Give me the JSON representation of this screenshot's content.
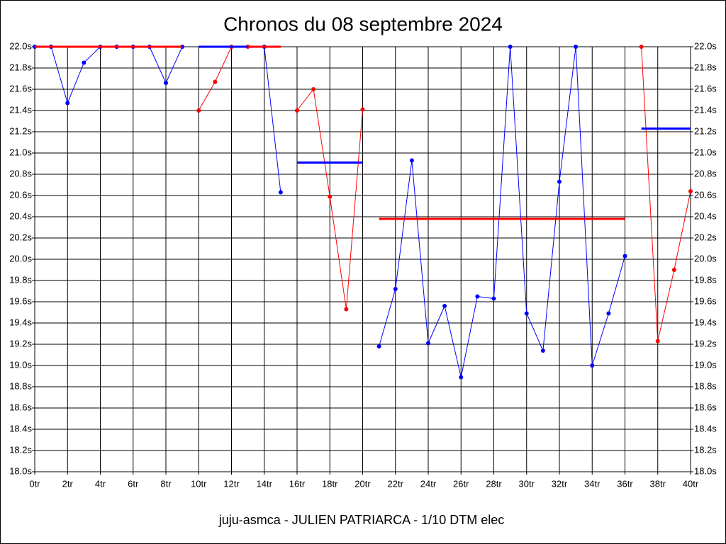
{
  "chart_data": {
    "type": "line",
    "title": "Chronos du 08 septembre 2024",
    "footer": "juju-asmca - JULIEN PATRIARCA - 1/10 DTM elec",
    "xlim": [
      0,
      40
    ],
    "ylim": [
      18.0,
      22.0
    ],
    "grid": true,
    "xticks": [
      {
        "value": 0,
        "label": "0tr"
      },
      {
        "value": 2,
        "label": "2tr"
      },
      {
        "value": 4,
        "label": "4tr"
      },
      {
        "value": 6,
        "label": "6tr"
      },
      {
        "value": 8,
        "label": "8tr"
      },
      {
        "value": 10,
        "label": "10tr"
      },
      {
        "value": 12,
        "label": "12tr"
      },
      {
        "value": 14,
        "label": "14tr"
      },
      {
        "value": 16,
        "label": "16tr"
      },
      {
        "value": 18,
        "label": "18tr"
      },
      {
        "value": 20,
        "label": "20tr"
      },
      {
        "value": 22,
        "label": "22tr"
      },
      {
        "value": 24,
        "label": "24tr"
      },
      {
        "value": 26,
        "label": "26tr"
      },
      {
        "value": 28,
        "label": "28tr"
      },
      {
        "value": 30,
        "label": "30tr"
      },
      {
        "value": 32,
        "label": "32tr"
      },
      {
        "value": 34,
        "label": "34tr"
      },
      {
        "value": 36,
        "label": "36tr"
      },
      {
        "value": 38,
        "label": "38tr"
      },
      {
        "value": 40,
        "label": "40tr"
      }
    ],
    "yticks": [
      {
        "value": 18.0,
        "label": "18.0s"
      },
      {
        "value": 18.2,
        "label": "18.2s"
      },
      {
        "value": 18.4,
        "label": "18.4s"
      },
      {
        "value": 18.6,
        "label": "18.6s"
      },
      {
        "value": 18.8,
        "label": "18.8s"
      },
      {
        "value": 19.0,
        "label": "19.0s"
      },
      {
        "value": 19.2,
        "label": "19.2s"
      },
      {
        "value": 19.4,
        "label": "19.4s"
      },
      {
        "value": 19.6,
        "label": "19.6s"
      },
      {
        "value": 19.8,
        "label": "19.8s"
      },
      {
        "value": 20.0,
        "label": "20.0s"
      },
      {
        "value": 20.2,
        "label": "20.2s"
      },
      {
        "value": 20.4,
        "label": "20.4s"
      },
      {
        "value": 20.6,
        "label": "20.6s"
      },
      {
        "value": 20.8,
        "label": "20.8s"
      },
      {
        "value": 21.0,
        "label": "21.0s"
      },
      {
        "value": 21.2,
        "label": "21.2s"
      },
      {
        "value": 21.4,
        "label": "21.4s"
      },
      {
        "value": 21.6,
        "label": "21.6s"
      },
      {
        "value": 21.8,
        "label": "21.8s"
      },
      {
        "value": 22.0,
        "label": "22.0s"
      }
    ],
    "series": [
      {
        "color": "#0000ff",
        "x": [
          0,
          1,
          2,
          3,
          4,
          5,
          6,
          7,
          8,
          9
        ],
        "values": [
          22.0,
          22.0,
          21.47,
          21.85,
          22.0,
          22.0,
          22.0,
          22.0,
          21.66,
          22.0
        ]
      },
      {
        "color": "#ff0000",
        "x": [
          10,
          11,
          12,
          13
        ],
        "values": [
          21.4,
          21.67,
          22.0,
          22.0
        ]
      },
      {
        "color": "#0000ff",
        "x": [
          14,
          15
        ],
        "values": [
          22.0,
          20.63
        ]
      },
      {
        "color": "#ff0000",
        "x": [
          16,
          17,
          18,
          19,
          20
        ],
        "values": [
          21.4,
          21.6,
          20.59,
          19.53,
          21.41
        ]
      },
      {
        "color": "#0000ff",
        "x": [
          21,
          22,
          23,
          24,
          25,
          26,
          27,
          28,
          29,
          30,
          31,
          32,
          33,
          34,
          35,
          36
        ],
        "values": [
          19.18,
          19.72,
          20.93,
          19.21,
          19.56,
          18.89,
          19.65,
          19.63,
          22.0,
          19.49,
          19.14,
          20.73,
          22.0,
          19.0,
          19.49,
          20.03
        ]
      },
      {
        "color": "#ff0000",
        "x": [
          37,
          38,
          39,
          40
        ],
        "values": [
          22.0,
          19.23,
          19.9,
          20.64
        ]
      }
    ],
    "mean_lines": [
      {
        "color": "#ff0000",
        "x": [
          0,
          9
        ],
        "value": 22.0
      },
      {
        "color": "#ff0000",
        "x": [
          13,
          15
        ],
        "value": 22.0
      },
      {
        "color": "#0000ff",
        "x": [
          10,
          13
        ],
        "value": 22.0
      },
      {
        "color": "#0000ff",
        "x": [
          16,
          20
        ],
        "value": 20.91
      },
      {
        "color": "#ff0000",
        "x": [
          21,
          36
        ],
        "value": 20.38
      },
      {
        "color": "#0000ff",
        "x": [
          37,
          40
        ],
        "value": 21.23
      }
    ]
  }
}
